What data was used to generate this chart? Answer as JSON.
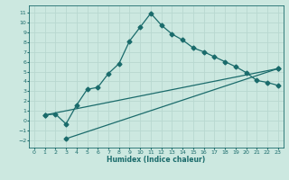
{
  "xlabel": "Humidex (Indice chaleur)",
  "bg_color": "#cce8e0",
  "line_color": "#1a6b6b",
  "grid_color": "#b8d8d0",
  "xlim": [
    -0.5,
    23.5
  ],
  "ylim": [
    -2.7,
    11.7
  ],
  "xticks": [
    0,
    1,
    2,
    3,
    4,
    5,
    6,
    7,
    8,
    9,
    10,
    11,
    12,
    13,
    14,
    15,
    16,
    17,
    18,
    19,
    20,
    21,
    22,
    23
  ],
  "yticks": [
    -2,
    -1,
    0,
    1,
    2,
    3,
    4,
    5,
    6,
    7,
    8,
    9,
    10,
    11
  ],
  "line1_x": [
    1,
    2,
    3,
    4,
    5,
    6,
    7,
    8,
    9,
    10,
    11,
    12,
    13,
    14,
    15,
    16,
    17,
    18,
    19,
    20,
    21,
    22,
    23
  ],
  "line1_y": [
    0.6,
    0.7,
    -0.3,
    1.6,
    3.2,
    3.4,
    4.8,
    5.8,
    8.1,
    9.5,
    10.9,
    9.7,
    8.8,
    8.2,
    7.4,
    7.0,
    6.5,
    6.0,
    5.5,
    4.9,
    4.1,
    3.9,
    3.6
  ],
  "line2_x": [
    1,
    23
  ],
  "line2_y": [
    0.6,
    5.3
  ],
  "line3_x": [
    3,
    23
  ],
  "line3_y": [
    -1.8,
    5.3
  ],
  "marker": "D",
  "markersize": 2.5,
  "linewidth": 0.9
}
